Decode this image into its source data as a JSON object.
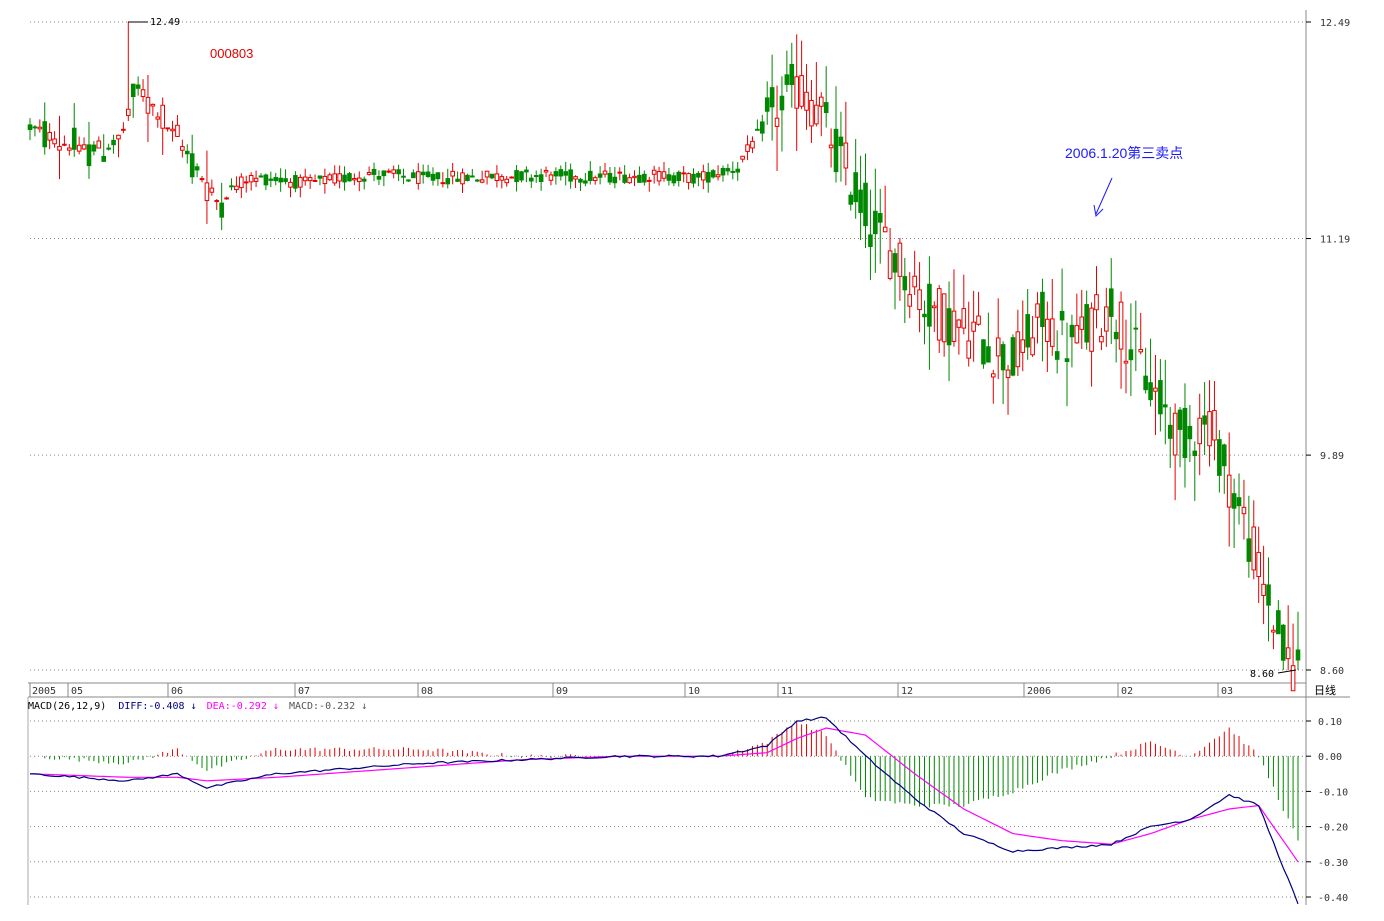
{
  "chart_data": {
    "type": "candlestick",
    "stock_code": "000803",
    "annotation": {
      "text": "2006.1.20第三卖点",
      "color": "#1a1aff"
    },
    "high_label": "12.49",
    "low_label": "8.60",
    "price_ticks": [
      "12.49",
      "11.19",
      "9.89",
      "8.60"
    ],
    "price_range": [
      8.6,
      12.49
    ],
    "x_labels": [
      "2005",
      "05",
      "06",
      "07",
      "08",
      "09",
      "10",
      "11",
      "12",
      "2006",
      "02",
      "03"
    ],
    "period_label": "日线",
    "macd_header": {
      "name": "MACD(26,12,9)",
      "diff": "DIFF:-0.408",
      "dea": "DEA:-0.292",
      "macd": "MACD:-0.232",
      "arrow": "↓"
    },
    "macd_ticks": [
      "0.10",
      "0.00",
      "-0.10",
      "-0.20",
      "-0.30",
      "-0.40"
    ],
    "macd_range": [
      -0.4,
      0.1
    ],
    "colors": {
      "up": "#e60000",
      "down": "#008800",
      "diff": "#000080",
      "dea": "#ff00ff",
      "grid": "#888888",
      "annotation": "#1a1aff"
    },
    "price_keyframes": [
      [
        0,
        11.86
      ],
      [
        10,
        11.72
      ],
      [
        18,
        11.76
      ],
      [
        22,
        12.1
      ],
      [
        32,
        11.7
      ],
      [
        38,
        11.42
      ],
      [
        44,
        11.55
      ],
      [
        50,
        11.55
      ],
      [
        56,
        11.52
      ],
      [
        70,
        11.58
      ],
      [
        80,
        11.55
      ],
      [
        92,
        11.56
      ],
      [
        104,
        11.57
      ],
      [
        116,
        11.56
      ],
      [
        128,
        11.57
      ],
      [
        136,
        11.55
      ],
      [
        144,
        11.62
      ],
      [
        150,
        11.9
      ],
      [
        156,
        12.1
      ],
      [
        160,
        11.98
      ],
      [
        166,
        11.6
      ],
      [
        172,
        11.25
      ],
      [
        178,
        11.0
      ],
      [
        182,
        10.8
      ],
      [
        190,
        10.65
      ],
      [
        200,
        10.45
      ],
      [
        206,
        10.7
      ],
      [
        212,
        10.55
      ],
      [
        220,
        10.8
      ],
      [
        228,
        10.3
      ],
      [
        234,
        10.0
      ],
      [
        240,
        10.1
      ],
      [
        248,
        9.4
      ],
      [
        256,
        8.62
      ],
      [
        258,
        8.6
      ]
    ],
    "macd_keyframes": [
      [
        0,
        -0.05,
        -0.05
      ],
      [
        20,
        -0.07,
        -0.06
      ],
      [
        30,
        -0.05,
        -0.06
      ],
      [
        36,
        -0.09,
        -0.07
      ],
      [
        50,
        -0.05,
        -0.06
      ],
      [
        60,
        -0.04,
        -0.05
      ],
      [
        80,
        -0.02,
        -0.03
      ],
      [
        100,
        -0.01,
        -0.01
      ],
      [
        120,
        0.0,
        0.0
      ],
      [
        140,
        0.0,
        0.0
      ],
      [
        150,
        0.03,
        0.01
      ],
      [
        156,
        0.1,
        0.05
      ],
      [
        162,
        0.11,
        0.08
      ],
      [
        170,
        0.0,
        0.06
      ],
      [
        180,
        -0.12,
        -0.05
      ],
      [
        190,
        -0.22,
        -0.15
      ],
      [
        200,
        -0.27,
        -0.22
      ],
      [
        210,
        -0.26,
        -0.24
      ],
      [
        220,
        -0.25,
        -0.25
      ],
      [
        228,
        -0.2,
        -0.22
      ],
      [
        236,
        -0.18,
        -0.18
      ],
      [
        244,
        -0.11,
        -0.15
      ],
      [
        250,
        -0.14,
        -0.14
      ],
      [
        258,
        -0.42,
        -0.3
      ]
    ]
  }
}
